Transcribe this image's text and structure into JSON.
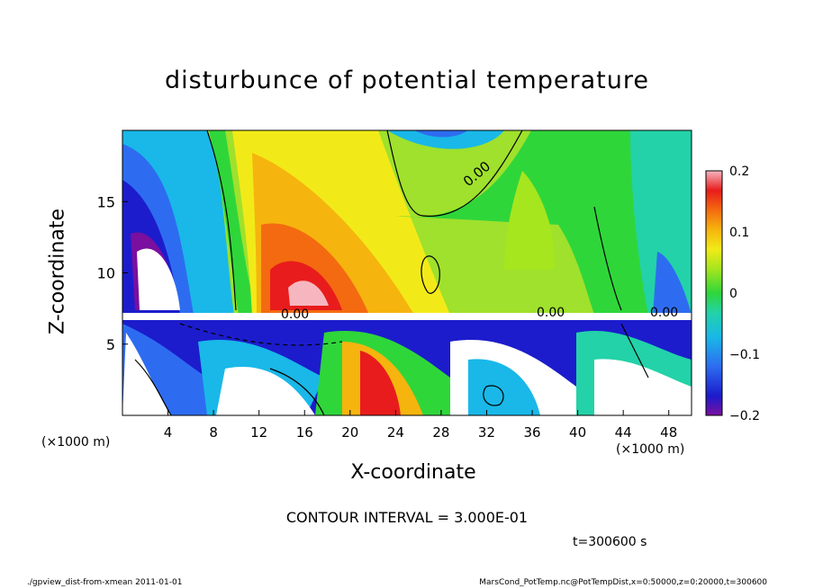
{
  "chart_data": {
    "type": "heatmap",
    "title": "disturbunce of potential temperature",
    "xlabel": "X-coordinate",
    "ylabel": "Z-coordinate",
    "x_unit": "(×1000 m)",
    "y_unit": "(×1000 m)",
    "xlim": [
      0,
      50
    ],
    "ylim": [
      0,
      20
    ],
    "x_ticks": [
      "4",
      "8",
      "12",
      "16",
      "20",
      "24",
      "28",
      "32",
      "36",
      "40",
      "44",
      "48"
    ],
    "y_ticks": [
      "5",
      "10",
      "15"
    ],
    "colorbar": {
      "min": -0.2,
      "max": 0.2,
      "tick_labels": [
        "0.2",
        "0.1",
        "0",
        "−0.1",
        "−0.2"
      ],
      "tick_values": [
        0.2,
        0.1,
        0,
        -0.1,
        -0.2
      ]
    },
    "contour_labels": [
      "0.00",
      "0.00",
      "0.00",
      "0.00"
    ],
    "contour_interval": "CONTOUR INTERVAL = 3.000E-01",
    "time": "t=300600 s"
  },
  "footer": {
    "left": "./gpview_dist-from-xmean  2011-01-01",
    "right": "MarsCond_PotTemp.nc@PotTempDist,x=0:50000,z=0:20000,t=300600"
  }
}
